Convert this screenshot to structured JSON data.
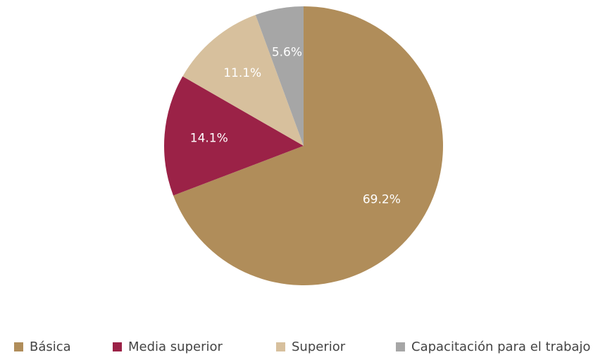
{
  "chart_data": {
    "type": "pie",
    "title": "",
    "start_angle_deg": 0,
    "direction": "clockwise",
    "legend_position": "bottom",
    "slices": [
      {
        "label": "Básica",
        "value": 69.2,
        "value_label": "69.2%",
        "color": "#B08D5A"
      },
      {
        "label": "Media superior",
        "value": 14.1,
        "value_label": "14.1%",
        "color": "#9B2247"
      },
      {
        "label": "Superior",
        "value": 11.1,
        "value_label": "11.1%",
        "color": "#D7C09D"
      },
      {
        "label": "Capacitación para el trabajo",
        "value": 5.6,
        "value_label": "5.6%",
        "color": "#A6A6A6"
      }
    ]
  },
  "legend": {
    "items": [
      {
        "label": "Básica",
        "color": "#B08D5A"
      },
      {
        "label": "Media superior",
        "color": "#9B2247"
      },
      {
        "label": "Superior",
        "color": "#D7C09D"
      },
      {
        "label": "Capacitación para el trabajo",
        "color": "#A6A6A6"
      }
    ]
  }
}
